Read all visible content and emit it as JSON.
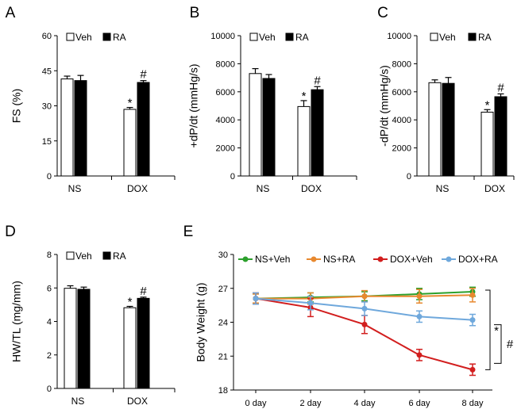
{
  "chart_data": [
    {
      "panel": "A",
      "type": "bar",
      "ylabel": "FS (%)",
      "ylim": [
        0,
        60
      ],
      "yticks": [
        0,
        15,
        30,
        45,
        60
      ],
      "categories": [
        "NS",
        "DOX"
      ],
      "series": [
        {
          "name": "Veh",
          "values": [
            41.5,
            28.5
          ],
          "errors": [
            1.2,
            0.8
          ],
          "color": "#ffffff"
        },
        {
          "name": "RA",
          "values": [
            40.8,
            40.0
          ],
          "errors": [
            2.2,
            0.8
          ],
          "color": "#000000"
        }
      ],
      "annotations": [
        {
          "category": "DOX",
          "series": "Veh",
          "text": "*"
        },
        {
          "category": "DOX",
          "series": "RA",
          "text": "#"
        }
      ]
    },
    {
      "panel": "B",
      "type": "bar",
      "ylabel": "+dP/dt (mmHg/s)",
      "ylim": [
        0,
        10000
      ],
      "yticks": [
        0,
        2000,
        4000,
        6000,
        8000,
        10000
      ],
      "categories": [
        "NS",
        "DOX"
      ],
      "series": [
        {
          "name": "Veh",
          "values": [
            7300,
            4950
          ],
          "errors": [
            350,
            420
          ],
          "color": "#ffffff"
        },
        {
          "name": "RA",
          "values": [
            6950,
            6150
          ],
          "errors": [
            280,
            220
          ],
          "color": "#000000"
        }
      ],
      "annotations": [
        {
          "category": "DOX",
          "series": "Veh",
          "text": "*"
        },
        {
          "category": "DOX",
          "series": "RA",
          "text": "#"
        }
      ]
    },
    {
      "panel": "C",
      "type": "bar",
      "ylabel": "-dP/dt (mmHg/s)",
      "ylim": [
        0,
        10000
      ],
      "yticks": [
        0,
        2000,
        4000,
        6000,
        8000,
        10000
      ],
      "categories": [
        "NS",
        "DOX"
      ],
      "series": [
        {
          "name": "Veh",
          "values": [
            6650,
            4550
          ],
          "errors": [
            200,
            180
          ],
          "color": "#ffffff"
        },
        {
          "name": "RA",
          "values": [
            6600,
            5650
          ],
          "errors": [
            420,
            200
          ],
          "color": "#000000"
        }
      ],
      "annotations": [
        {
          "category": "DOX",
          "series": "Veh",
          "text": "*"
        },
        {
          "category": "DOX",
          "series": "RA",
          "text": "#"
        }
      ]
    },
    {
      "panel": "D",
      "type": "bar",
      "ylabel": "HW/TL (mg/mm)",
      "ylim": [
        0,
        8
      ],
      "yticks": [
        0,
        2,
        4,
        6,
        8
      ],
      "categories": [
        "NS",
        "DOX"
      ],
      "series": [
        {
          "name": "Veh",
          "values": [
            5.98,
            4.82
          ],
          "errors": [
            0.15,
            0.08
          ],
          "color": "#ffffff"
        },
        {
          "name": "RA",
          "values": [
            5.92,
            5.38
          ],
          "errors": [
            0.13,
            0.07
          ],
          "color": "#000000"
        }
      ],
      "annotations": [
        {
          "category": "DOX",
          "series": "Veh",
          "text": "*"
        },
        {
          "category": "DOX",
          "series": "RA",
          "text": "#"
        }
      ]
    },
    {
      "panel": "E",
      "type": "line",
      "ylabel": "Body Weight (g)",
      "ylim": [
        18,
        30
      ],
      "yticks": [
        18,
        21,
        24,
        27,
        30
      ],
      "x": [
        "0 day",
        "2 day",
        "4 day",
        "6 day",
        "8 day"
      ],
      "series": [
        {
          "name": "NS+Veh",
          "color": "#2ca02c",
          "values": [
            26.1,
            26.2,
            26.3,
            26.5,
            26.7
          ],
          "errors": [
            0.4,
            0.4,
            0.4,
            0.5,
            0.4
          ]
        },
        {
          "name": "NS+RA",
          "color": "#e8892f",
          "values": [
            26.1,
            26.1,
            26.3,
            26.3,
            26.4
          ],
          "errors": [
            0.4,
            0.5,
            0.5,
            0.6,
            0.6
          ]
        },
        {
          "name": "DOX+Veh",
          "color": "#d21e1e",
          "values": [
            26.1,
            25.3,
            23.8,
            21.1,
            19.8
          ],
          "errors": [
            0.5,
            0.8,
            0.8,
            0.5,
            0.5
          ]
        },
        {
          "name": "DOX+RA",
          "color": "#6fa8dc",
          "values": [
            26.1,
            25.7,
            25.2,
            24.5,
            24.2
          ],
          "errors": [
            0.5,
            0.6,
            0.6,
            0.5,
            0.5
          ]
        }
      ],
      "annotations": [
        {
          "text": "*",
          "between": [
            "NS+Veh",
            "DOX+Veh"
          ]
        },
        {
          "text": "#",
          "between": [
            "DOX+Veh",
            "DOX+RA"
          ]
        }
      ]
    }
  ]
}
